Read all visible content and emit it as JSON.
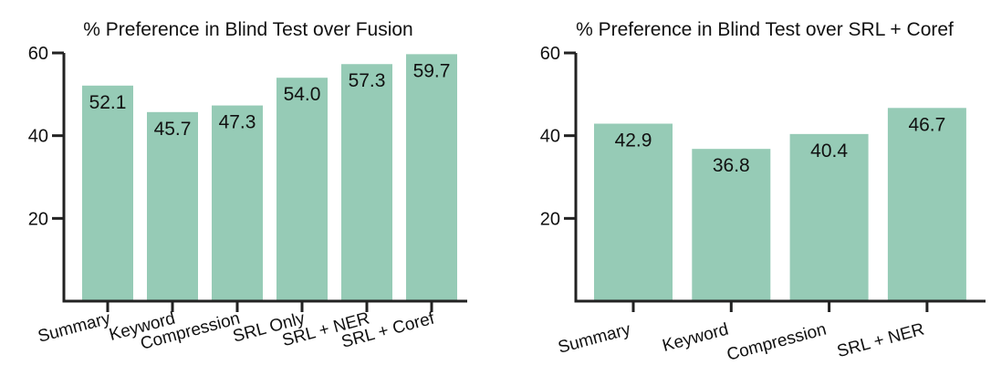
{
  "chart_data": [
    {
      "type": "bar",
      "title": "% Preference in Blind Test over Fusion",
      "xlabel": "",
      "ylabel": "",
      "categories": [
        "Summary",
        "Keyword",
        "Compression",
        "SRL Only",
        "SRL + NER",
        "SRL + Coref"
      ],
      "values": [
        52.1,
        45.7,
        47.3,
        54.0,
        57.3,
        59.7
      ],
      "value_labels": [
        "52.1",
        "45.7",
        "47.3",
        "54.0",
        "57.3",
        "59.7"
      ],
      "ylim": [
        0,
        60
      ],
      "yticks": [
        20,
        40,
        60
      ],
      "grid": false,
      "legend": "none"
    },
    {
      "type": "bar",
      "title": "% Preference in Blind Test over SRL + Coref",
      "xlabel": "",
      "ylabel": "",
      "categories": [
        "Summary",
        "Keyword",
        "Compression",
        "SRL + NER"
      ],
      "values": [
        42.9,
        36.8,
        40.4,
        46.7
      ],
      "value_labels": [
        "42.9",
        "36.8",
        "40.4",
        "46.7"
      ],
      "ylim": [
        0,
        60
      ],
      "yticks": [
        20,
        40,
        60
      ],
      "grid": false,
      "legend": "none"
    }
  ],
  "colors": {
    "bar": "#96cbb6",
    "axis": "#222222",
    "text": "#111111"
  }
}
